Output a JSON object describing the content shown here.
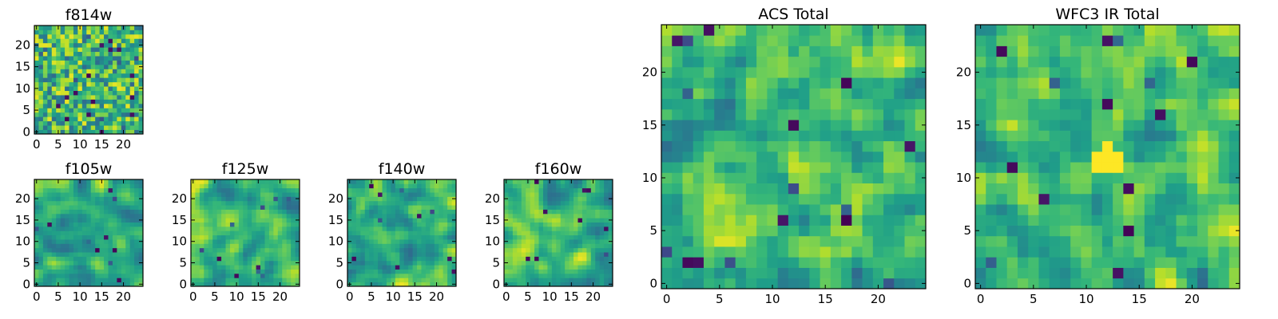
{
  "chart_data": [
    {
      "type": "heatmap",
      "id": "f814w",
      "title": "f814w",
      "grid": [
        25,
        25
      ],
      "colormap": "viridis",
      "seed": 11,
      "smooth": 0,
      "outliers": 26,
      "xticks": [
        "0",
        "5",
        "10",
        "15",
        "20"
      ],
      "yticks": [
        "0",
        "5",
        "10",
        "15",
        "20"
      ],
      "xlim": [
        0,
        25
      ],
      "ylim": [
        0,
        25
      ]
    },
    {
      "type": "heatmap",
      "id": "f105w",
      "title": "f105w",
      "grid": [
        25,
        25
      ],
      "colormap": "viridis",
      "seed": 23,
      "smooth": 2,
      "outliers": 10,
      "xticks": [
        "0",
        "5",
        "10",
        "15",
        "20"
      ],
      "yticks": [
        "0",
        "5",
        "10",
        "15",
        "20"
      ],
      "xlim": [
        0,
        25
      ],
      "ylim": [
        0,
        25
      ]
    },
    {
      "type": "heatmap",
      "id": "f125w",
      "title": "f125w",
      "grid": [
        25,
        25
      ],
      "colormap": "viridis",
      "seed": 37,
      "smooth": 2,
      "outliers": 10,
      "xticks": [
        "0",
        "5",
        "10",
        "15",
        "20"
      ],
      "yticks": [
        "0",
        "5",
        "10",
        "15",
        "20"
      ],
      "xlim": [
        0,
        25
      ],
      "ylim": [
        0,
        25
      ]
    },
    {
      "type": "heatmap",
      "id": "f140w",
      "title": "f140w",
      "grid": [
        25,
        25
      ],
      "colormap": "viridis",
      "seed": 41,
      "smooth": 2,
      "outliers": 10,
      "xticks": [
        "0",
        "5",
        "10",
        "15",
        "20"
      ],
      "yticks": [
        "0",
        "5",
        "10",
        "15",
        "20"
      ],
      "xlim": [
        0,
        25
      ],
      "ylim": [
        0,
        25
      ]
    },
    {
      "type": "heatmap",
      "id": "f160w",
      "title": "f160w",
      "grid": [
        25,
        25
      ],
      "colormap": "viridis",
      "seed": 53,
      "smooth": 2,
      "outliers": 10,
      "xticks": [
        "0",
        "5",
        "10",
        "15",
        "20"
      ],
      "yticks": [
        "0",
        "5",
        "10",
        "15",
        "20"
      ],
      "xlim": [
        0,
        25
      ],
      "ylim": [
        0,
        25
      ]
    },
    {
      "type": "heatmap",
      "id": "acs-total",
      "title": "ACS Total",
      "grid": [
        25,
        25
      ],
      "colormap": "viridis",
      "seed": 67,
      "smooth": 1,
      "outliers": 16,
      "xticks": [
        "0",
        "5",
        "10",
        "15",
        "20"
      ],
      "yticks": [
        "0",
        "5",
        "10",
        "15",
        "20"
      ],
      "xlim": [
        0,
        25
      ],
      "ylim": [
        0,
        25
      ]
    },
    {
      "type": "heatmap",
      "id": "wfc3-ir-total",
      "title": "WFC3 IR Total",
      "grid": [
        25,
        25
      ],
      "colormap": "viridis",
      "seed": 79,
      "smooth": 1,
      "outliers": 14,
      "bright_patch": {
        "x": [
          11,
          13
        ],
        "y": [
          11,
          12
        ],
        "value": 1.0
      },
      "xticks": [
        "0",
        "5",
        "10",
        "15",
        "20"
      ],
      "yticks": [
        "0",
        "5",
        "10",
        "15",
        "20"
      ],
      "xlim": [
        0,
        25
      ],
      "ylim": [
        0,
        25
      ]
    }
  ]
}
